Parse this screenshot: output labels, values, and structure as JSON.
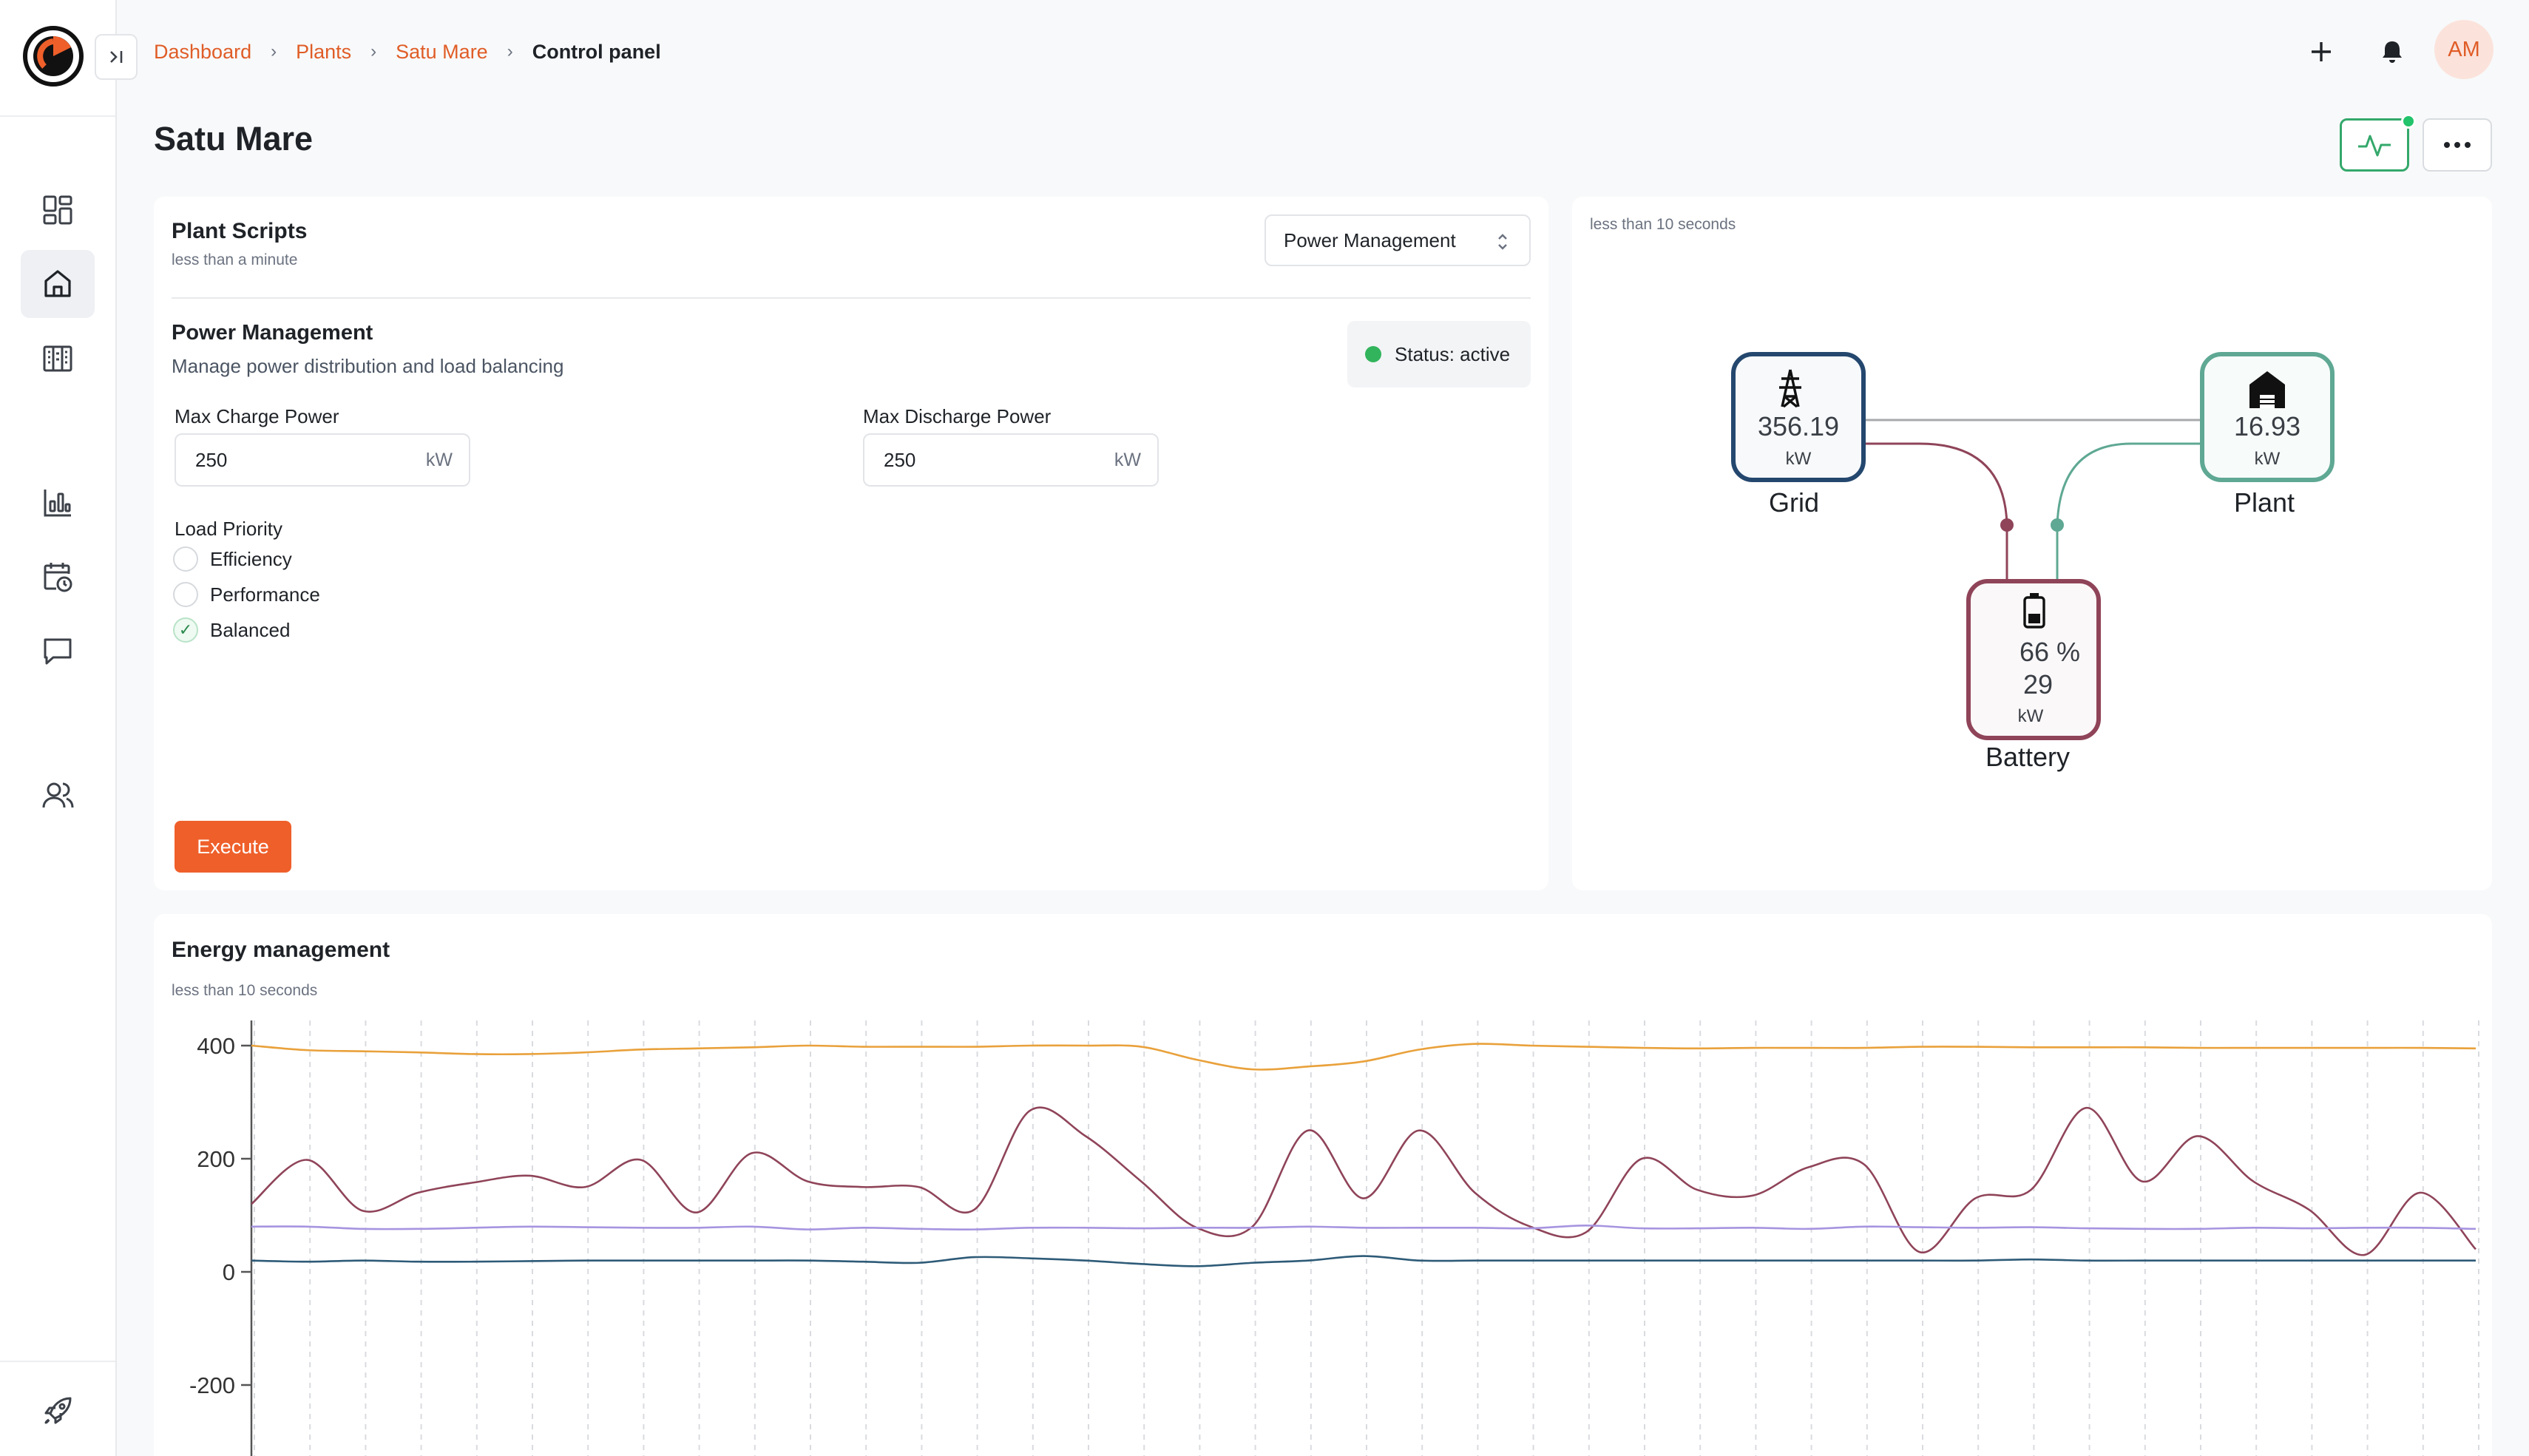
{
  "breadcrumb": {
    "items": [
      "Dashboard",
      "Plants",
      "Satu Mare"
    ],
    "current": "Control panel"
  },
  "header": {
    "avatar_initials": "AM"
  },
  "page": {
    "title": "Satu Mare"
  },
  "sidebar": {
    "items": [
      {
        "name": "dashboard",
        "icon": "grid-icon",
        "active": false
      },
      {
        "name": "plants",
        "icon": "home-icon",
        "active": true
      },
      {
        "name": "devices",
        "icon": "building-icon",
        "active": false
      },
      {
        "name": "analytics",
        "icon": "bar-chart-icon",
        "active": false
      },
      {
        "name": "schedule",
        "icon": "calendar-clock-icon",
        "active": false
      },
      {
        "name": "messages",
        "icon": "message-icon",
        "active": false
      },
      {
        "name": "users",
        "icon": "users-icon",
        "active": false
      },
      {
        "name": "launch",
        "icon": "rocket-icon",
        "active": false
      }
    ]
  },
  "scripts_card": {
    "title": "Plant Scripts",
    "subtitle": "less than a minute",
    "select_value": "Power Management",
    "section_title": "Power Management",
    "section_desc": "Manage power distribution and load balancing",
    "status": "Status: active",
    "max_charge": {
      "label": "Max Charge Power",
      "value": "250",
      "unit": "kW"
    },
    "max_discharge": {
      "label": "Max Discharge Power",
      "value": "250",
      "unit": "kW"
    },
    "load_priority": {
      "label": "Load Priority",
      "options": [
        "Efficiency",
        "Performance",
        "Balanced"
      ],
      "selected": "Balanced"
    },
    "execute_label": "Execute"
  },
  "flow_card": {
    "subtitle": "less than 10 seconds",
    "grid": {
      "value": "356.19",
      "unit": "kW",
      "label": "Grid",
      "color": "#24476e"
    },
    "plant": {
      "value": "16.93",
      "unit": "kW",
      "label": "Plant",
      "color": "#5fa893"
    },
    "battery": {
      "percent": "66 %",
      "value": "29",
      "unit": "kW",
      "label": "Battery",
      "color": "#8f4459"
    }
  },
  "energy_card": {
    "title": "Energy management",
    "subtitle": "less than 10 seconds"
  },
  "chart_data": {
    "type": "line",
    "title": "Energy management",
    "xlabel": "",
    "ylabel": "",
    "ylim": [
      -300,
      450
    ],
    "yticks": [
      400,
      200,
      0,
      -200
    ],
    "grid": true,
    "x": [
      0,
      1,
      2,
      3,
      4,
      5,
      6,
      7,
      8,
      9,
      10,
      11,
      12,
      13,
      14,
      15,
      16,
      17,
      18,
      19,
      20,
      21,
      22,
      23,
      24,
      25,
      26,
      27,
      28,
      29,
      30,
      31,
      32,
      33,
      34,
      35,
      36,
      37,
      38,
      39,
      40
    ],
    "series": [
      {
        "color": "#e9a13b",
        "values": [
          400,
          392,
          390,
          388,
          385,
          385,
          388,
          393,
          395,
          397,
          400,
          398,
          398,
          398,
          400,
          400,
          398,
          375,
          358,
          363,
          372,
          393,
          403,
          400,
          398,
          396,
          395,
          396,
          396,
          396,
          398,
          398,
          397,
          397,
          397,
          396,
          396,
          396,
          396,
          396,
          395
        ]
      },
      {
        "color": "#8f4459",
        "values": [
          120,
          198,
          108,
          140,
          158,
          170,
          150,
          198,
          105,
          210,
          160,
          150,
          150,
          110,
          285,
          240,
          160,
          78,
          80,
          250,
          130,
          250,
          140,
          80,
          70,
          200,
          145,
          135,
          185,
          190,
          35,
          130,
          145,
          290,
          160,
          240,
          160,
          110,
          30,
          140,
          40
        ]
      },
      {
        "color": "#a794e0",
        "values": [
          80,
          80,
          76,
          76,
          78,
          80,
          79,
          78,
          78,
          80,
          75,
          78,
          76,
          75,
          78,
          78,
          77,
          78,
          78,
          80,
          78,
          78,
          78,
          77,
          82,
          77,
          77,
          78,
          76,
          80,
          79,
          78,
          79,
          77,
          76,
          76,
          78,
          77,
          78,
          78,
          76
        ]
      },
      {
        "color": "#2e5b78",
        "values": [
          20,
          18,
          20,
          18,
          18,
          19,
          20,
          20,
          20,
          20,
          20,
          18,
          16,
          26,
          24,
          20,
          14,
          10,
          16,
          20,
          28,
          20,
          20,
          20,
          20,
          20,
          20,
          20,
          20,
          20,
          20,
          20,
          22,
          20,
          20,
          20,
          20,
          20,
          20,
          20,
          20
        ]
      }
    ]
  }
}
